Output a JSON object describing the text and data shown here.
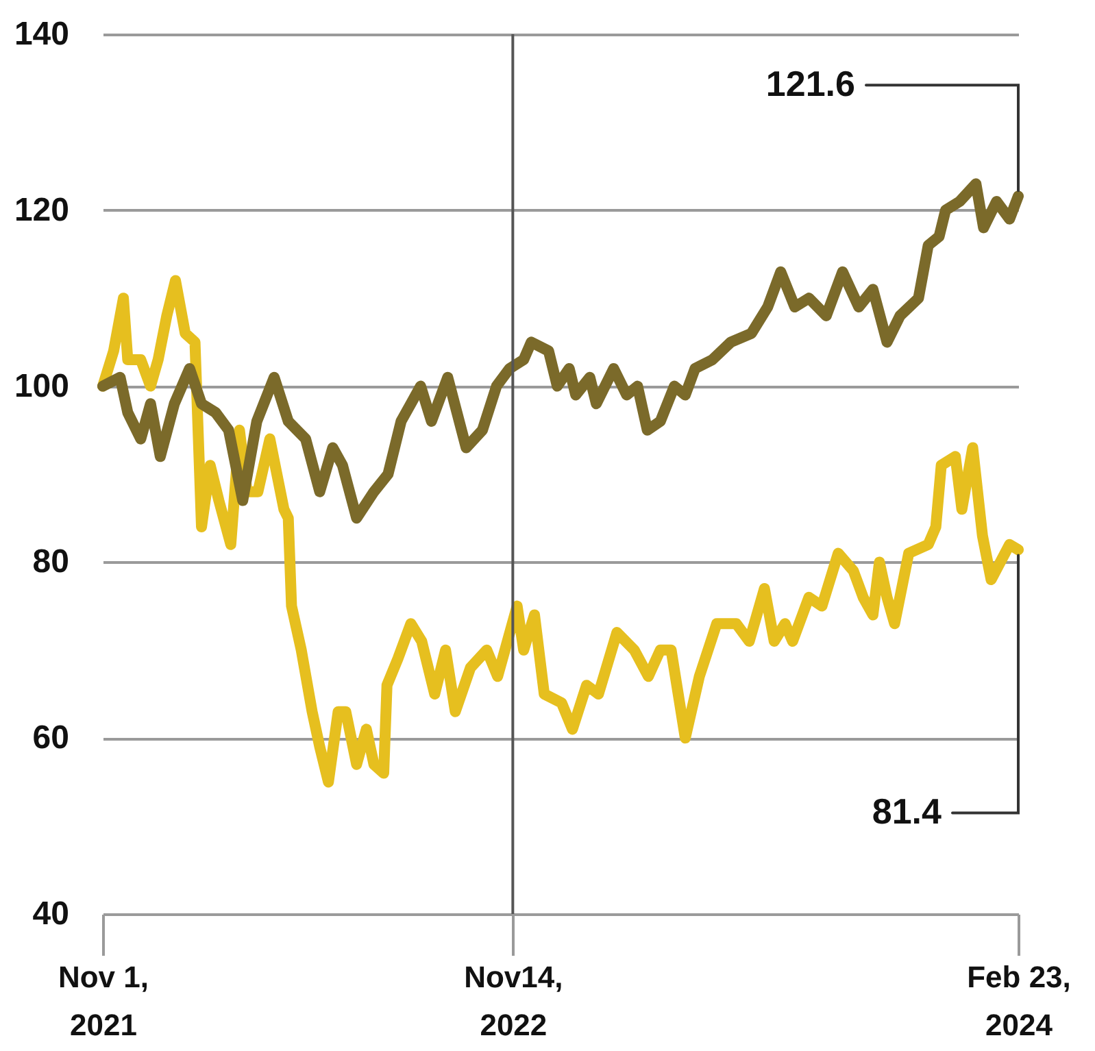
{
  "chart_data": {
    "type": "line",
    "series": [
      {
        "color": "#7b6a2a",
        "x": [
          "2021-11-01",
          "2021-11-17",
          "2021-11-24",
          "2021-12-06",
          "2021-12-15",
          "2021-12-24",
          "2022-01-06",
          "2022-01-20",
          "2022-01-31",
          "2022-02-13",
          "2022-02-25",
          "2022-03-10",
          "2022-03-23",
          "2022-04-08",
          "2022-04-21",
          "2022-05-07",
          "2022-05-20",
          "2022-06-01",
          "2022-06-10",
          "2022-06-23",
          "2022-07-09",
          "2022-07-22",
          "2022-08-03",
          "2022-08-12",
          "2022-08-21",
          "2022-08-31",
          "2022-09-15",
          "2022-10-02",
          "2022-10-17",
          "2022-10-30",
          "2022-11-11",
          "2022-11-24",
          "2022-12-01",
          "2022-12-17",
          "2022-12-25",
          "2023-01-05",
          "2023-01-11",
          "2023-01-24",
          "2023-01-30",
          "2023-02-15",
          "2023-02-27",
          "2023-03-09",
          "2023-03-18",
          "2023-03-30",
          "2023-04-12",
          "2023-04-22",
          "2023-05-01",
          "2023-05-17",
          "2023-06-03",
          "2023-06-22",
          "2023-07-07",
          "2023-07-19",
          "2023-08-01",
          "2023-08-14",
          "2023-08-30",
          "2023-09-14",
          "2023-09-29",
          "2023-10-12",
          "2023-10-25",
          "2023-11-06",
          "2023-11-23",
          "2023-12-02",
          "2023-12-12",
          "2023-12-18",
          "2023-12-31",
          "2024-01-15",
          "2024-01-22",
          "2024-02-03",
          "2024-02-15",
          "2024-02-23"
        ],
        "values": [
          100,
          101,
          97,
          94,
          98,
          92,
          98,
          102,
          98,
          97,
          95,
          87,
          96,
          101,
          96,
          94,
          88,
          93,
          91,
          85,
          88,
          90,
          96,
          98,
          100,
          96,
          101,
          93,
          95,
          100,
          102,
          103,
          105,
          104,
          100,
          102,
          99,
          101,
          98,
          102,
          99,
          100,
          95,
          96,
          100,
          99,
          102,
          103,
          105,
          106,
          109,
          113,
          109,
          110,
          108,
          113,
          109,
          111,
          105,
          108,
          110,
          116,
          117,
          120,
          121,
          123,
          118,
          121,
          119,
          121.6
        ]
      },
      {
        "color": "#e6bf1f",
        "x": [
          "2021-11-01",
          "2021-11-11",
          "2021-11-20",
          "2021-11-24",
          "2021-12-06",
          "2021-12-15",
          "2021-12-22",
          "2021-12-30",
          "2022-01-07",
          "2022-01-16",
          "2022-01-25",
          "2022-01-31",
          "2022-02-08",
          "2022-02-16",
          "2022-02-27",
          "2022-03-07",
          "2022-03-14",
          "2022-03-24",
          "2022-04-04",
          "2022-04-17",
          "2022-04-21",
          "2022-04-24",
          "2022-05-03",
          "2022-05-13",
          "2022-05-20",
          "2022-05-28",
          "2022-06-06",
          "2022-06-13",
          "2022-06-23",
          "2022-07-02",
          "2022-07-09",
          "2022-07-18",
          "2022-07-21",
          "2022-07-31",
          "2022-08-12",
          "2022-08-22",
          "2022-09-03",
          "2022-09-13",
          "2022-09-22",
          "2022-10-06",
          "2022-10-21",
          "2022-10-31",
          "2022-11-18",
          "2022-11-24",
          "2022-12-04",
          "2022-12-13",
          "2022-12-29",
          "2023-01-08",
          "2023-01-21",
          "2023-02-01",
          "2023-02-18",
          "2023-03-06",
          "2023-03-19",
          "2023-03-30",
          "2023-04-09",
          "2023-04-22",
          "2023-05-05",
          "2023-05-21",
          "2023-06-08",
          "2023-06-20",
          "2023-07-04",
          "2023-07-13",
          "2023-07-23",
          "2023-07-30",
          "2023-08-14",
          "2023-08-26",
          "2023-09-10",
          "2023-09-24",
          "2023-10-03",
          "2023-10-12",
          "2023-10-18",
          "2023-10-25",
          "2023-11-01",
          "2023-11-14",
          "2023-12-02",
          "2023-12-09",
          "2023-12-14",
          "2023-12-27",
          "2024-01-02",
          "2024-01-12",
          "2024-01-21",
          "2024-01-29",
          "2024-02-15",
          "2024-02-23"
        ],
        "values": [
          100,
          104,
          110,
          103,
          103,
          100,
          103,
          108,
          112,
          106,
          105,
          84,
          91,
          87,
          82,
          95,
          88,
          88,
          94,
          86,
          85,
          75,
          70,
          63,
          59,
          55,
          63,
          63,
          57,
          61,
          57,
          56,
          66,
          69,
          73,
          71,
          65,
          70,
          63,
          68,
          70,
          67,
          75,
          70,
          74,
          65,
          64,
          61,
          66,
          65,
          72,
          70,
          67,
          70,
          70,
          60,
          67,
          73,
          73,
          71,
          77,
          71,
          73,
          71,
          76,
          75,
          81,
          79,
          76,
          74,
          80,
          76,
          73,
          81,
          82,
          84,
          91,
          92,
          86,
          93,
          83,
          78,
          82,
          81.4
        ]
      }
    ],
    "xlim": [
      "2021-11-01",
      "2024-02-23"
    ],
    "xticks": [
      {
        "value": "2021-11-01",
        "label": "Nov 1,\n2021"
      },
      {
        "value": "2022-11-14",
        "label": "Nov14,\n2022"
      },
      {
        "value": "2024-02-23",
        "label": "Feb 23,\n2024"
      }
    ],
    "ylim": [
      40,
      140
    ],
    "yticks": [
      40,
      60,
      80,
      100,
      120,
      140
    ],
    "grid": "y",
    "line_style": "solid",
    "ref_lines": [
      {
        "axis": "x",
        "value": "2022-11-14",
        "color": "#555555"
      }
    ],
    "annotations": [
      {
        "text": "121.6",
        "x": "2024-02-23",
        "y": 121.6
      },
      {
        "text": "81.4",
        "x": "2024-02-23",
        "y": 81.4
      }
    ]
  }
}
